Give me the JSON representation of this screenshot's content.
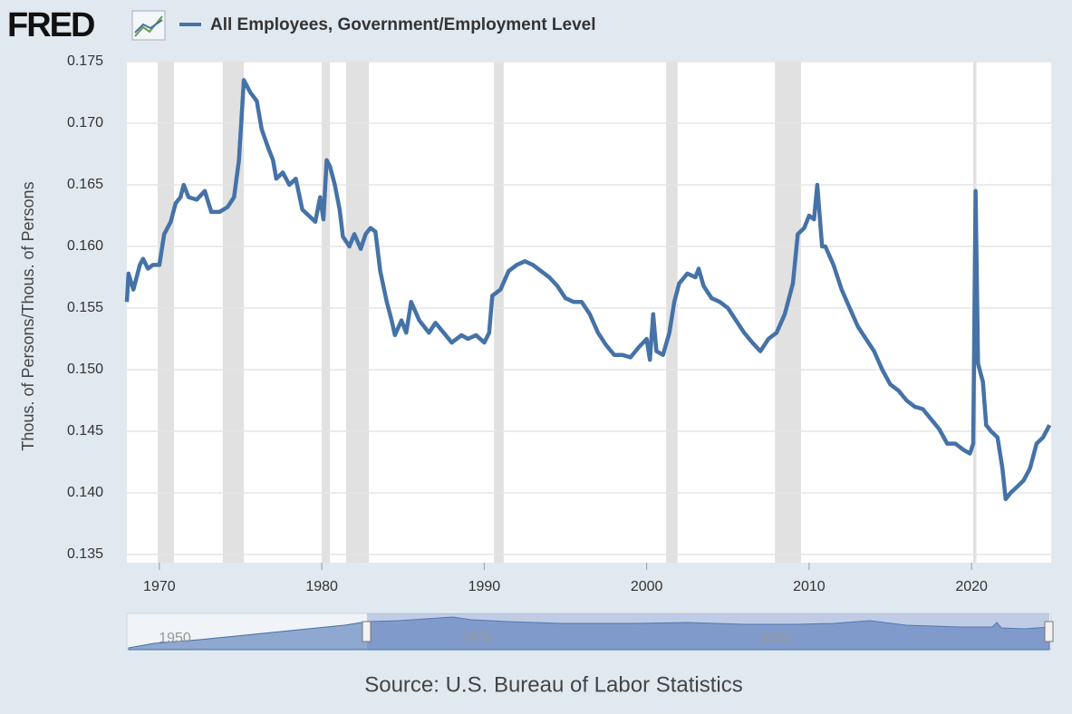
{
  "logo": "FRED",
  "source": "Source: U.S. Bureau of Labor Statistics",
  "navigator_labels": [
    "1950",
    "1975",
    "2000"
  ],
  "chart_data": {
    "type": "line",
    "y_label": "Thous. of Persons/Thous. of Persons",
    "xlim": [
      1968.0,
      2024.9
    ],
    "xticks": [
      1970,
      1980,
      1990,
      2000,
      2010,
      2020
    ],
    "ylim": [
      0.135,
      0.175
    ],
    "yticks": [
      {
        "value": 0.135,
        "label": "0.135"
      },
      {
        "value": 0.14,
        "label": "0.140"
      },
      {
        "value": 0.145,
        "label": "0.145"
      },
      {
        "value": 0.15,
        "label": "0.150"
      },
      {
        "value": 0.155,
        "label": "0.155"
      },
      {
        "value": 0.16,
        "label": "0.160"
      },
      {
        "value": 0.165,
        "label": "0.165"
      },
      {
        "value": 0.17,
        "label": "0.170"
      },
      {
        "value": 0.175,
        "label": "0.175"
      }
    ],
    "grid": true,
    "recessions": [
      [
        1969.9,
        1970.9
      ],
      [
        1973.9,
        1975.2
      ],
      [
        1980.0,
        1980.5
      ],
      [
        1981.5,
        1982.9
      ],
      [
        1990.6,
        1991.2
      ],
      [
        2001.2,
        2001.9
      ],
      [
        2007.9,
        2009.5
      ],
      [
        2020.1,
        2020.3
      ]
    ],
    "x": [
      1968.0,
      1968.1,
      1968.4,
      1968.8,
      1969.0,
      1969.3,
      1969.6,
      1970.0,
      1970.3,
      1970.7,
      1971.0,
      1971.3,
      1971.5,
      1971.8,
      1972.3,
      1972.8,
      1973.2,
      1973.7,
      1974.2,
      1974.6,
      1974.9,
      1975.2,
      1975.6,
      1976.0,
      1976.3,
      1976.7,
      1977.0,
      1977.2,
      1977.6,
      1978.0,
      1978.4,
      1978.8,
      1979.2,
      1979.6,
      1979.9,
      1980.1,
      1980.3,
      1980.5,
      1980.8,
      1981.1,
      1981.3,
      1981.7,
      1982.0,
      1982.4,
      1982.7,
      1983.0,
      1983.3,
      1983.6,
      1984.0,
      1984.3,
      1984.5,
      1984.9,
      1985.2,
      1985.5,
      1986.0,
      1986.6,
      1987.0,
      1987.5,
      1988.0,
      1988.6,
      1989.0,
      1989.5,
      1990.0,
      1990.3,
      1990.5,
      1991.0,
      1991.5,
      1992.0,
      1992.5,
      1993.0,
      1993.5,
      1994.0,
      1994.5,
      1995.0,
      1995.5,
      1996.0,
      1996.5,
      1997.0,
      1997.5,
      1998.0,
      1998.5,
      1999.0,
      1999.5,
      2000.0,
      2000.2,
      2000.4,
      2000.6,
      2001.0,
      2001.4,
      2001.7,
      2002.0,
      2002.5,
      2003.0,
      2003.2,
      2003.5,
      2004.0,
      2004.5,
      2005.0,
      2005.5,
      2006.0,
      2006.5,
      2007.0,
      2007.5,
      2008.0,
      2008.5,
      2009.0,
      2009.3,
      2009.7,
      2010.0,
      2010.3,
      2010.5,
      2010.8,
      2011.0,
      2011.5,
      2012.0,
      2012.5,
      2013.0,
      2013.5,
      2014.0,
      2014.5,
      2015.0,
      2015.5,
      2016.0,
      2016.5,
      2017.0,
      2017.5,
      2018.0,
      2018.5,
      2019.0,
      2019.5,
      2019.9,
      2020.1,
      2020.25,
      2020.4,
      2020.7,
      2020.9,
      2021.2,
      2021.6,
      2021.9,
      2022.1,
      2022.4,
      2022.8,
      2023.2,
      2023.6,
      2024.0,
      2024.4,
      2024.8
    ],
    "series": [
      {
        "name": "All Employees, Government/Employment Level",
        "color": "#4572a7",
        "values": [
          0.1555,
          0.1578,
          0.1565,
          0.1585,
          0.159,
          0.1582,
          0.1585,
          0.1585,
          0.161,
          0.162,
          0.1635,
          0.164,
          0.165,
          0.164,
          0.1638,
          0.1645,
          0.1628,
          0.1628,
          0.1632,
          0.164,
          0.167,
          0.1735,
          0.1725,
          0.1718,
          0.1695,
          0.168,
          0.167,
          0.1655,
          0.166,
          0.165,
          0.1655,
          0.163,
          0.1625,
          0.162,
          0.164,
          0.1622,
          0.167,
          0.1665,
          0.165,
          0.163,
          0.1608,
          0.16,
          0.161,
          0.1598,
          0.161,
          0.1615,
          0.1612,
          0.158,
          0.1555,
          0.154,
          0.1528,
          0.154,
          0.153,
          0.1555,
          0.154,
          0.153,
          0.1538,
          0.153,
          0.1522,
          0.1528,
          0.1525,
          0.1528,
          0.1522,
          0.153,
          0.156,
          0.1565,
          0.158,
          0.1585,
          0.1588,
          0.1585,
          0.158,
          0.1575,
          0.1568,
          0.1558,
          0.1555,
          0.1555,
          0.1545,
          0.153,
          0.152,
          0.1512,
          0.1512,
          0.151,
          0.1518,
          0.1525,
          0.1508,
          0.1545,
          0.1515,
          0.1512,
          0.153,
          0.1555,
          0.157,
          0.1578,
          0.1575,
          0.1582,
          0.1568,
          0.1558,
          0.1555,
          0.155,
          0.154,
          0.153,
          0.1522,
          0.1515,
          0.1525,
          0.153,
          0.1545,
          0.157,
          0.161,
          0.1615,
          0.1625,
          0.1622,
          0.165,
          0.16,
          0.16,
          0.1585,
          0.1565,
          0.155,
          0.1535,
          0.1525,
          0.1515,
          0.15,
          0.1488,
          0.1483,
          0.1475,
          0.147,
          0.1468,
          0.146,
          0.1452,
          0.144,
          0.144,
          0.1435,
          0.1432,
          0.144,
          0.1645,
          0.1505,
          0.149,
          0.1455,
          0.145,
          0.1445,
          0.142,
          0.1395,
          0.14,
          0.1405,
          0.141,
          0.142,
          0.144,
          0.1445,
          0.1455
        ]
      }
    ]
  }
}
